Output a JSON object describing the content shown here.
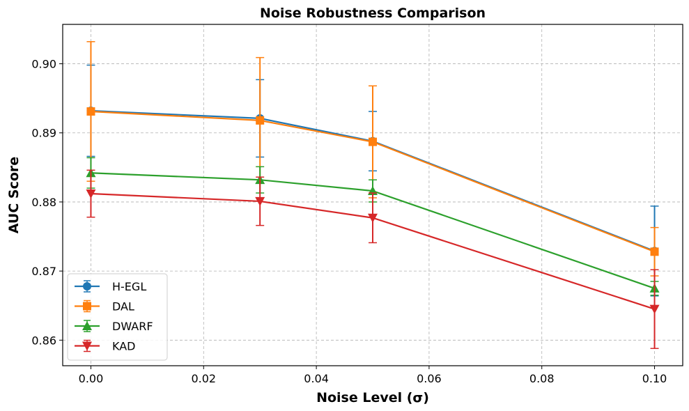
{
  "chart_data": {
    "type": "line",
    "title": "Noise Robustness Comparison",
    "xlabel": "Noise Level (σ)",
    "ylabel": "AUC Score",
    "xlim": [
      -0.005,
      0.105
    ],
    "ylim": [
      0.8563,
      0.9057
    ],
    "xticks": [
      0.0,
      0.02,
      0.04,
      0.06,
      0.08,
      0.1
    ],
    "xtick_labels": [
      "0.00",
      "0.02",
      "0.04",
      "0.06",
      "0.08",
      "0.10"
    ],
    "yticks": [
      0.86,
      0.87,
      0.88,
      0.89,
      0.9
    ],
    "ytick_labels": [
      "0.86",
      "0.87",
      "0.88",
      "0.89",
      "0.90"
    ],
    "grid": true,
    "legend_position": "lower-left",
    "x": [
      0.0,
      0.03,
      0.05,
      0.1
    ],
    "series": [
      {
        "name": "H-EGL",
        "color": "#1f77b4",
        "marker": "circle",
        "values": [
          0.8932,
          0.8921,
          0.8888,
          0.8729
        ],
        "errors": [
          0.0066,
          0.0056,
          0.0043,
          0.0065
        ]
      },
      {
        "name": "DAL",
        "color": "#ff7f0e",
        "marker": "square",
        "values": [
          0.8931,
          0.8918,
          0.8887,
          0.8728
        ],
        "errors": [
          0.0101,
          0.0091,
          0.0081,
          0.0035
        ]
      },
      {
        "name": "DWARF",
        "color": "#2ca02c",
        "marker": "triangle-up",
        "values": [
          0.8842,
          0.8832,
          0.8816,
          0.8675
        ],
        "errors": [
          0.0022,
          0.0019,
          0.0016,
          0.001
        ]
      },
      {
        "name": "KAD",
        "color": "#d62728",
        "marker": "triangle-down",
        "values": [
          0.8812,
          0.8801,
          0.8777,
          0.8645
        ],
        "errors": [
          0.0034,
          0.0035,
          0.0036,
          0.0057
        ]
      }
    ]
  }
}
